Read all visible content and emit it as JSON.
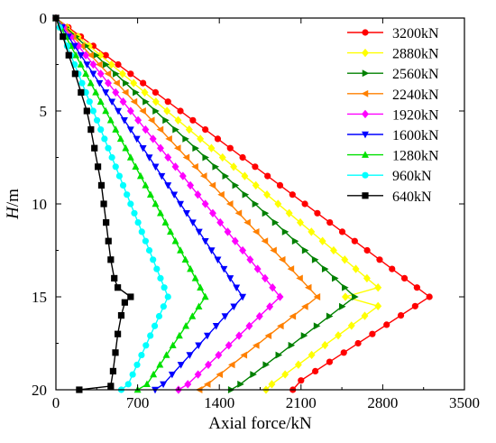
{
  "chart_data": {
    "type": "line",
    "xlabel": "Axial force/kN",
    "ylabel": "H/m",
    "xlim": [
      0,
      3500
    ],
    "ylim": [
      0,
      20
    ],
    "y_inverted": true,
    "x_ticks": [
      0,
      700,
      1400,
      2100,
      2800,
      3500
    ],
    "y_ticks": [
      0,
      5,
      10,
      15,
      20
    ],
    "grid": false,
    "legend_position": "top-right",
    "series": [
      {
        "name": "3200kN",
        "color": "#ff0000",
        "marker": "circle",
        "points": [
          [
            0,
            0
          ],
          [
            3200,
            15
          ],
          [
            2100,
            19.5
          ],
          [
            2030,
            20
          ]
        ]
      },
      {
        "name": "2880kN",
        "color": "#ffff00",
        "marker": "diamond",
        "points": [
          [
            0,
            0
          ],
          [
            2760,
            14.5
          ],
          [
            2480,
            15
          ],
          [
            2760,
            15.5
          ],
          [
            1850,
            19.7
          ],
          [
            1800,
            20
          ]
        ]
      },
      {
        "name": "2560kN",
        "color": "#008000",
        "marker": "triangle-right",
        "points": [
          [
            0,
            0
          ],
          [
            2560,
            15
          ],
          [
            1580,
            19.7
          ],
          [
            1500,
            20
          ]
        ]
      },
      {
        "name": "2240kN",
        "color": "#ff8000",
        "marker": "triangle-left",
        "points": [
          [
            0,
            0
          ],
          [
            2240,
            15
          ],
          [
            1300,
            19.7
          ],
          [
            1230,
            20
          ]
        ]
      },
      {
        "name": "1920kN",
        "color": "#ff00ff",
        "marker": "diamond",
        "points": [
          [
            0,
            0
          ],
          [
            1920,
            15
          ],
          [
            1130,
            19.7
          ],
          [
            1050,
            20
          ]
        ]
      },
      {
        "name": "1600kN",
        "color": "#0000ff",
        "marker": "triangle-down",
        "points": [
          [
            0,
            0
          ],
          [
            1600,
            15
          ],
          [
            920,
            19.7
          ],
          [
            850,
            20
          ]
        ]
      },
      {
        "name": "1280kN",
        "color": "#00e000",
        "marker": "triangle-up",
        "points": [
          [
            0,
            0
          ],
          [
            1280,
            15
          ],
          [
            780,
            19.7
          ],
          [
            700,
            20
          ]
        ]
      },
      {
        "name": "960kN",
        "color": "#00ffff",
        "marker": "circle",
        "points": [
          [
            0,
            0
          ],
          [
            960,
            15
          ],
          [
            620,
            19.7
          ],
          [
            560,
            20
          ]
        ]
      },
      {
        "name": "640kN",
        "color": "#000000",
        "marker": "square",
        "points": [
          [
            0,
            0
          ],
          [
            60,
            1
          ],
          [
            110,
            2
          ],
          [
            165,
            3
          ],
          [
            215,
            4
          ],
          [
            265,
            5
          ],
          [
            300,
            6
          ],
          [
            330,
            7
          ],
          [
            360,
            8
          ],
          [
            390,
            9
          ],
          [
            410,
            10
          ],
          [
            430,
            11
          ],
          [
            450,
            12
          ],
          [
            470,
            13
          ],
          [
            500,
            14
          ],
          [
            530,
            14.5
          ],
          [
            640,
            15
          ],
          [
            590,
            15.3
          ],
          [
            560,
            16
          ],
          [
            530,
            17
          ],
          [
            510,
            18
          ],
          [
            490,
            19
          ],
          [
            470,
            19.8
          ],
          [
            200,
            20
          ]
        ]
      }
    ]
  }
}
